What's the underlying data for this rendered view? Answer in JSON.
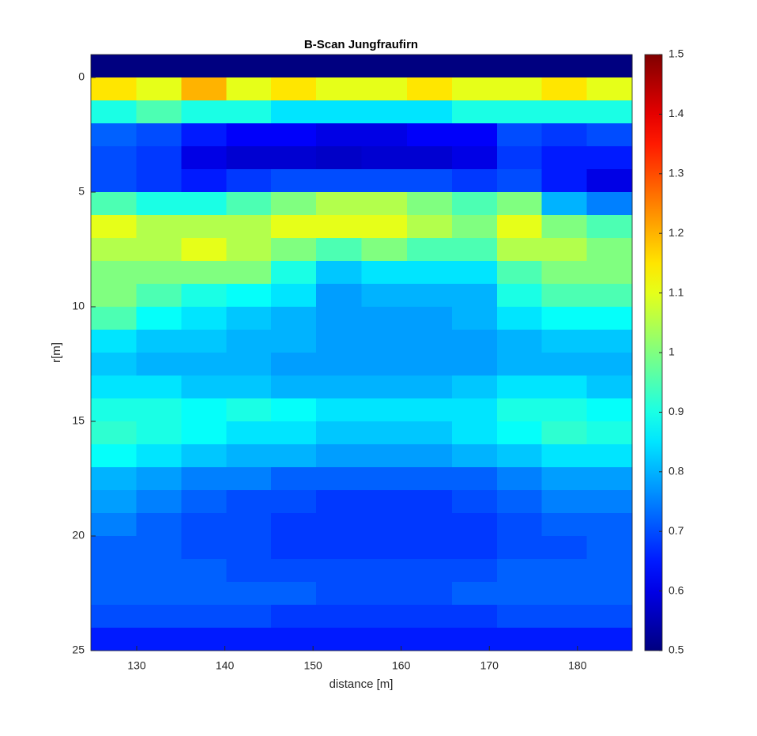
{
  "chart_data": {
    "type": "heatmap",
    "title": "B-Scan Jungfraufirn",
    "x_label": "distance [m]",
    "y_label": "r[m]",
    "x": [
      127.4,
      132.5,
      137.6,
      142.7,
      147.8,
      152.9,
      158.1,
      163.2,
      168.3,
      173.4,
      178.5,
      183.6
    ],
    "y": [
      -0.5,
      0.5,
      1.5,
      2.5,
      3.5,
      4.5,
      5.5,
      6.5,
      7.5,
      8.5,
      9.5,
      10.5,
      11.5,
      12.5,
      13.5,
      14.5,
      15.5,
      16.5,
      17.5,
      18.5,
      19.5,
      20.5,
      21.5,
      22.5,
      23.5,
      24.5
    ],
    "z": [
      [
        0.5,
        0.5,
        0.5,
        0.5,
        0.5,
        0.5,
        0.5,
        0.5,
        0.5,
        0.5,
        0.5,
        0.5
      ],
      [
        1.15,
        1.1,
        1.2,
        1.1,
        1.15,
        1.1,
        1.1,
        1.15,
        1.1,
        1.1,
        1.15,
        1.1
      ],
      [
        0.9,
        0.95,
        0.9,
        0.9,
        0.85,
        0.85,
        0.85,
        0.85,
        0.9,
        0.9,
        0.9,
        0.9
      ],
      [
        0.72,
        0.7,
        0.65,
        0.62,
        0.62,
        0.6,
        0.6,
        0.62,
        0.62,
        0.7,
        0.68,
        0.7
      ],
      [
        0.7,
        0.68,
        0.6,
        0.58,
        0.58,
        0.57,
        0.58,
        0.58,
        0.6,
        0.68,
        0.65,
        0.65
      ],
      [
        0.7,
        0.68,
        0.65,
        0.68,
        0.7,
        0.7,
        0.7,
        0.7,
        0.68,
        0.7,
        0.65,
        0.6
      ],
      [
        0.95,
        0.9,
        0.9,
        0.95,
        1.0,
        1.05,
        1.05,
        1.0,
        0.95,
        1.0,
        0.8,
        0.75
      ],
      [
        1.1,
        1.05,
        1.05,
        1.05,
        1.1,
        1.1,
        1.1,
        1.05,
        1.0,
        1.1,
        1.0,
        0.95
      ],
      [
        1.05,
        1.05,
        1.1,
        1.05,
        1.0,
        0.95,
        1.0,
        0.95,
        0.95,
        1.05,
        1.05,
        1.0
      ],
      [
        1.0,
        1.0,
        1.0,
        1.0,
        0.9,
        0.82,
        0.85,
        0.85,
        0.85,
        0.95,
        1.0,
        1.0
      ],
      [
        1.0,
        0.95,
        0.9,
        0.88,
        0.85,
        0.78,
        0.8,
        0.8,
        0.8,
        0.9,
        0.95,
        0.95
      ],
      [
        0.95,
        0.88,
        0.85,
        0.82,
        0.8,
        0.78,
        0.78,
        0.78,
        0.8,
        0.85,
        0.88,
        0.88
      ],
      [
        0.85,
        0.82,
        0.82,
        0.8,
        0.8,
        0.78,
        0.78,
        0.78,
        0.78,
        0.8,
        0.82,
        0.82
      ],
      [
        0.82,
        0.8,
        0.8,
        0.8,
        0.78,
        0.78,
        0.78,
        0.78,
        0.78,
        0.8,
        0.8,
        0.8
      ],
      [
        0.85,
        0.85,
        0.82,
        0.82,
        0.8,
        0.8,
        0.8,
        0.8,
        0.82,
        0.85,
        0.85,
        0.82
      ],
      [
        0.9,
        0.9,
        0.88,
        0.9,
        0.88,
        0.85,
        0.85,
        0.85,
        0.85,
        0.9,
        0.9,
        0.88
      ],
      [
        0.92,
        0.9,
        0.88,
        0.85,
        0.85,
        0.82,
        0.82,
        0.82,
        0.85,
        0.88,
        0.92,
        0.9
      ],
      [
        0.88,
        0.85,
        0.82,
        0.8,
        0.8,
        0.78,
        0.78,
        0.78,
        0.8,
        0.82,
        0.85,
        0.85
      ],
      [
        0.8,
        0.78,
        0.75,
        0.75,
        0.72,
        0.72,
        0.72,
        0.72,
        0.72,
        0.75,
        0.78,
        0.78
      ],
      [
        0.78,
        0.75,
        0.72,
        0.7,
        0.7,
        0.68,
        0.68,
        0.68,
        0.7,
        0.72,
        0.75,
        0.75
      ],
      [
        0.75,
        0.72,
        0.7,
        0.7,
        0.68,
        0.68,
        0.68,
        0.68,
        0.68,
        0.7,
        0.72,
        0.72
      ],
      [
        0.72,
        0.72,
        0.7,
        0.7,
        0.68,
        0.68,
        0.68,
        0.68,
        0.68,
        0.7,
        0.7,
        0.72
      ],
      [
        0.72,
        0.72,
        0.72,
        0.7,
        0.7,
        0.7,
        0.7,
        0.7,
        0.7,
        0.72,
        0.72,
        0.72
      ],
      [
        0.72,
        0.72,
        0.72,
        0.72,
        0.72,
        0.7,
        0.7,
        0.7,
        0.72,
        0.72,
        0.72,
        0.72
      ],
      [
        0.7,
        0.7,
        0.7,
        0.7,
        0.68,
        0.68,
        0.68,
        0.68,
        0.68,
        0.7,
        0.7,
        0.7
      ],
      [
        0.65,
        0.65,
        0.65,
        0.65,
        0.65,
        0.65,
        0.65,
        0.65,
        0.65,
        0.65,
        0.65,
        0.65
      ]
    ],
    "xlim": [
      124.8,
      186.2
    ],
    "ylim": [
      -1,
      25
    ],
    "y_direction": "reverse",
    "xticks": [
      130,
      140,
      150,
      160,
      170,
      180
    ],
    "yticks": [
      0,
      5,
      10,
      15,
      20,
      25
    ],
    "colormap": "jet",
    "clim": [
      0.5,
      1.5
    ],
    "cticks": [
      0.5,
      0.6,
      0.7,
      0.8,
      0.9,
      1,
      1.1,
      1.2,
      1.3,
      1.4,
      1.5
    ]
  }
}
